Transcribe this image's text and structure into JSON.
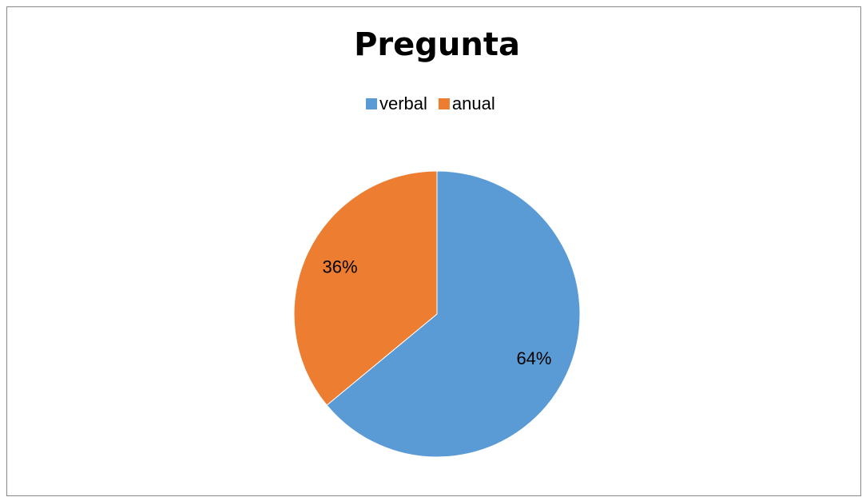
{
  "chart_data": {
    "type": "pie",
    "title": "Pregunta",
    "categories": [
      "verbal",
      "anual"
    ],
    "values": [
      64,
      36
    ],
    "value_labels": [
      "64%",
      "36%"
    ],
    "colors": [
      "#5b9bd5",
      "#ed7d31"
    ],
    "legend": "top"
  }
}
